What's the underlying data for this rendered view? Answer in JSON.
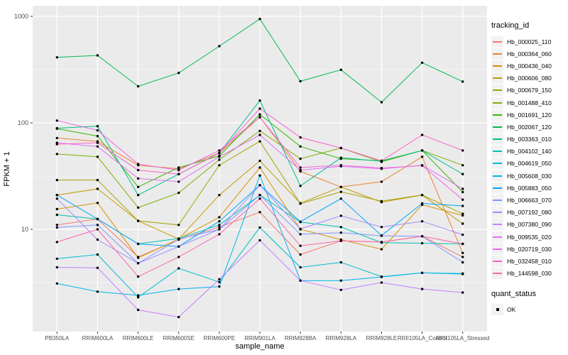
{
  "chart_data": {
    "type": "line",
    "title": "",
    "xlabel": "sample_name",
    "ylabel": "FPKM + 1",
    "x_categories": [
      "PB350LA",
      "RRIM600LA",
      "RRIM600LE",
      "RRIM600SE",
      "RRIM600PE",
      "RRIM901LA",
      "RRIM928BA",
      "RRIM928LA",
      "RRIM928LE",
      "RRII105LA_Control",
      "RRII105LA_Stressed"
    ],
    "y_scale": "log10",
    "y_ticks": [
      "10",
      "100",
      "1000"
    ],
    "y_tick_values": [
      10,
      100,
      1000
    ],
    "y_minor_gridlines": [
      3.1623,
      31.623,
      316.23
    ],
    "ylim": [
      1.05,
      1300
    ],
    "grid": true,
    "panel_bg": "#EBEBEB",
    "grid_color": "#FFFFFF",
    "tick_label_color": "#4D4D4D",
    "point_color": "#000000",
    "legend": {
      "title": "tracking_id",
      "position": "right"
    },
    "legend2": {
      "title": "quant_status",
      "items": [
        {
          "label": "OK",
          "marker": "square",
          "color": "#000000"
        }
      ]
    },
    "series": [
      {
        "name": "Hb_000025_110",
        "color": "#F8766D",
        "values": [
          11,
          12.5,
          5.5,
          8,
          10.5,
          14.5,
          5.8,
          7.8,
          7.6,
          8.6,
          5.5
        ]
      },
      {
        "name": "Hb_000364_060",
        "color": "#EA8331",
        "values": [
          72,
          67,
          40,
          37,
          52,
          113,
          35,
          25,
          28,
          48,
          6
        ]
      },
      {
        "name": "Hb_000436_040",
        "color": "#D89000",
        "values": [
          15.5,
          17.7,
          5.4,
          8.1,
          13,
          38,
          10,
          8,
          6.5,
          17,
          13.5
        ]
      },
      {
        "name": "Hb_000606_080",
        "color": "#C09B00",
        "values": [
          21,
          24,
          12,
          8.1,
          21,
          44,
          17.6,
          25,
          18,
          21,
          11.3
        ]
      },
      {
        "name": "Hb_000679_150",
        "color": "#A3A500",
        "values": [
          29,
          29,
          12,
          11,
          40,
          67,
          17.4,
          22.5,
          18.4,
          21,
          14
        ]
      },
      {
        "name": "Hb_001488_410",
        "color": "#7CAE00",
        "values": [
          51,
          48,
          16,
          22,
          45,
          84,
          46,
          58,
          43,
          55,
          40
        ]
      },
      {
        "name": "Hb_001691_120",
        "color": "#39B600",
        "values": [
          88,
          75,
          25,
          38,
          49,
          120,
          60,
          46,
          44,
          55,
          22.4
        ]
      },
      {
        "name": "Hb_002067_120",
        "color": "#00BB4E",
        "values": [
          412,
          430,
          220,
          294,
          525,
          945,
          246,
          315,
          156,
          367,
          244
        ]
      },
      {
        "name": "Hb_003363_010",
        "color": "#00C08D",
        "values": [
          89,
          93,
          21,
          33,
          52,
          162,
          25.6,
          47,
          43.6,
          55,
          33
        ]
      },
      {
        "name": "Hb_004102_140",
        "color": "#00C0B4",
        "values": [
          13.7,
          12.5,
          7.3,
          8.2,
          11,
          21,
          11.7,
          10.5,
          7.5,
          7.4,
          7.3
        ]
      },
      {
        "name": "Hb_004619_050",
        "color": "#00BDD2",
        "values": [
          5.3,
          5.8,
          2.3,
          4.3,
          3.2,
          10.4,
          4.4,
          4.9,
          3.6,
          3.9,
          3.85
        ]
      },
      {
        "name": "Hb_005608_030",
        "color": "#00B5EC",
        "values": [
          3.1,
          2.6,
          2.4,
          2.75,
          2.9,
          32,
          3.3,
          3.3,
          3.57,
          3.9,
          3.8
        ]
      },
      {
        "name": "Hb_005883_050",
        "color": "#00A6FF",
        "values": [
          21,
          12.5,
          7.3,
          6.9,
          11.9,
          26,
          11.8,
          19.4,
          8.75,
          17.5,
          16.6
        ]
      },
      {
        "name": "Hb_006663_070",
        "color": "#7F96FF",
        "values": [
          10.4,
          11,
          4.8,
          8.1,
          10,
          21,
          9,
          9.3,
          8.7,
          8.6,
          4.9
        ]
      },
      {
        "name": "Hb_007192_080",
        "color": "#A588FF",
        "values": [
          19.4,
          8,
          4.8,
          6.9,
          10,
          26,
          10.1,
          13.4,
          10.5,
          11.9,
          8.9
        ]
      },
      {
        "name": "Hb_007380_090",
        "color": "#C77CFF",
        "values": [
          4.4,
          4.35,
          1.75,
          1.5,
          3.4,
          7.9,
          3.3,
          2.7,
          3.16,
          2.75,
          2.55
        ]
      },
      {
        "name": "Hb_009535_020",
        "color": "#E26EF7",
        "values": [
          65,
          60,
          30,
          28,
          48,
          77,
          36,
          39,
          37,
          40,
          24
        ]
      },
      {
        "name": "Hb_020719_030",
        "color": "#F265E1",
        "values": [
          105,
          85,
          41,
          36,
          55,
          113,
          38,
          40,
          37.6,
          39.7,
          19
        ]
      },
      {
        "name": "Hb_032458_010",
        "color": "#FC61C9",
        "values": [
          63,
          65,
          36,
          33,
          52,
          136,
          73,
          58,
          44,
          77,
          55
        ]
      },
      {
        "name": "Hb_144598_030",
        "color": "#FF65AC",
        "values": [
          7.6,
          10,
          3.6,
          5.5,
          9,
          19.4,
          7,
          7.8,
          7.6,
          8.6,
          7.3
        ]
      }
    ]
  }
}
